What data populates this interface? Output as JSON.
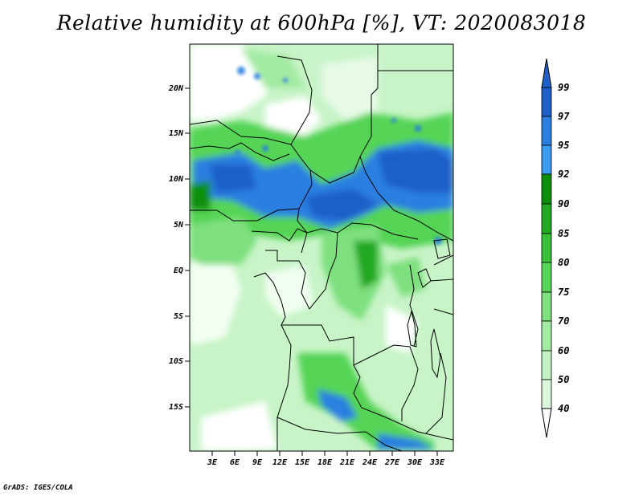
{
  "figure": {
    "title": "Relative humidity at 600hPa [%], VT: 2020083018",
    "credit": "GrADS: IGES/COLA"
  },
  "map": {
    "lat_labels": [
      "20N",
      "15N",
      "10N",
      "5N",
      "EQ",
      "5S",
      "10S",
      "15S"
    ],
    "lon_labels": [
      "3E",
      "6E",
      "9E",
      "12E",
      "15E",
      "18E",
      "21E",
      "24E",
      "27E",
      "30E",
      "33E"
    ]
  },
  "colorbar": {
    "labels": [
      "99",
      "97",
      "95",
      "92",
      "90",
      "85",
      "80",
      "75",
      "70",
      "60",
      "50",
      "40"
    ],
    "colors": [
      "#1f5fc8",
      "#2a7fe0",
      "#3b9bf0",
      "#0d8f0d",
      "#22a822",
      "#38c038",
      "#55d455",
      "#7ee07e",
      "#a3eaa3",
      "#c2f2c2",
      "#dcf8dc",
      "#f2fdf2",
      "#ffffff"
    ]
  }
}
